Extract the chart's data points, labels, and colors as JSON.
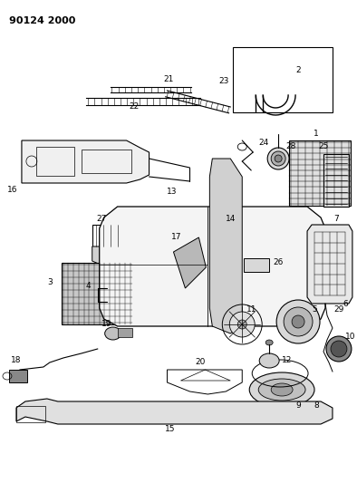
{
  "title": "90124 2000",
  "bg_color": "#ffffff",
  "fg_color": "#000000",
  "figsize": [
    3.94,
    5.33
  ],
  "dpi": 100,
  "xlim": [
    0,
    394
  ],
  "ylim": [
    0,
    533
  ]
}
